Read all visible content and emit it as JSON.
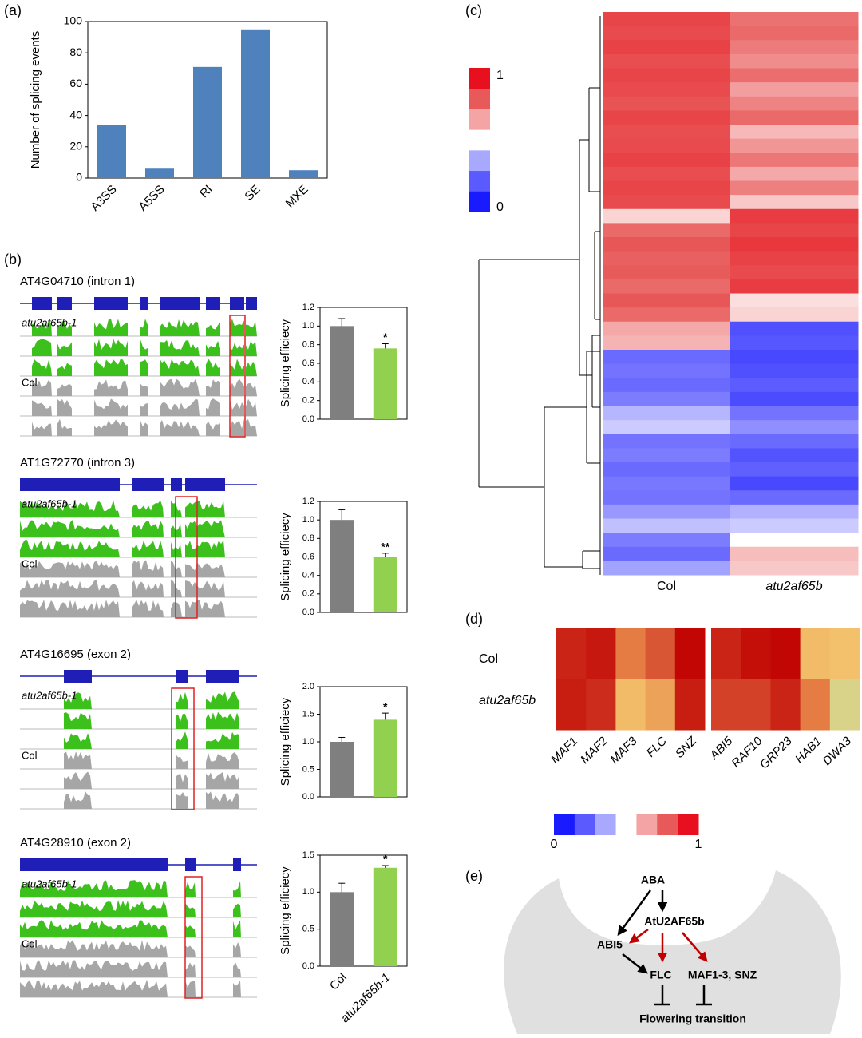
{
  "panel_labels": [
    "(a)",
    "(b)",
    "(c)",
    "(d)",
    "(e)"
  ],
  "tracks": [
    {
      "gene": "AT4G04710 (intron 1)",
      "samples": [
        "atu2af65b-1",
        "Col"
      ]
    },
    {
      "gene": "AT1G72770 (intron 3)",
      "samples": [
        "atu2af65b-1",
        "Col"
      ]
    },
    {
      "gene": "AT4G16695 (exon 2)",
      "samples": [
        "atu2af65b-1",
        "Col"
      ]
    },
    {
      "gene": "AT4G28910 (exon 2)",
      "samples": [
        "atu2af65b-1",
        "Col"
      ]
    }
  ],
  "chart_data": [
    {
      "type": "bar",
      "y_label": "Number of splicing events",
      "categories": [
        "A3SS",
        "A5SS",
        "RI",
        "SE",
        "MXE"
      ],
      "values": [
        34,
        6,
        71,
        95,
        5
      ],
      "color": "#4f81bd",
      "ylim": [
        0,
        100
      ],
      "yticks": [
        0,
        20,
        40,
        60,
        80,
        100
      ]
    },
    {
      "type": "bar",
      "y_label": "Splicing efficiecy",
      "categories": [
        null,
        null
      ],
      "values": [
        1.0,
        0.76
      ],
      "errors": [
        0.08,
        0.05
      ],
      "significance": [
        null,
        "*"
      ],
      "colors": [
        "#7f7f7f",
        "#92d050"
      ],
      "ylim": [
        0,
        1.2
      ],
      "yticks": [
        {
          "value": 0,
          "label": "0.0"
        },
        0.2,
        0.4,
        0.6,
        0.8,
        {
          "value": 1,
          "label": "1.0"
        },
        1.2
      ]
    },
    {
      "type": "bar",
      "y_label": "Splicing efficiecy",
      "categories": [
        null,
        null
      ],
      "values": [
        1.0,
        0.6
      ],
      "errors": [
        0.11,
        0.04
      ],
      "significance": [
        null,
        "**"
      ],
      "colors": [
        "#7f7f7f",
        "#92d050"
      ],
      "ylim": [
        0,
        1.2
      ],
      "yticks": [
        {
          "value": 0,
          "label": "0.0"
        },
        0.2,
        0.4,
        0.6,
        0.8,
        {
          "value": 1,
          "label": "1.0"
        },
        1.2
      ]
    },
    {
      "type": "bar",
      "y_label": "Splicing efficiecy",
      "categories": [
        null,
        null
      ],
      "values": [
        1.0,
        1.4
      ],
      "errors": [
        0.08,
        0.12
      ],
      "significance": [
        null,
        "*"
      ],
      "colors": [
        "#7f7f7f",
        "#92d050"
      ],
      "ylim": [
        0,
        2
      ],
      "yticks": [
        {
          "value": 0,
          "label": "0.0"
        },
        0.5,
        {
          "value": 1,
          "label": "1.0"
        },
        1.5,
        {
          "value": 2,
          "label": "2.0"
        }
      ]
    },
    {
      "type": "bar",
      "y_label": "Splicing efficiecy",
      "categories": [
        "Col",
        "atu2af65b-1"
      ],
      "values": [
        1.0,
        1.33
      ],
      "errors": [
        0.12,
        0.03
      ],
      "significance": [
        null,
        "*"
      ],
      "colors": [
        "#7f7f7f",
        "#92d050"
      ],
      "ylim": [
        0,
        1.5
      ],
      "yticks": [
        {
          "value": 0,
          "label": "0.0"
        },
        0.5,
        {
          "value": 1,
          "label": "1.0"
        },
        1.5
      ]
    },
    {
      "type": "heatmap",
      "categories": [
        "Col",
        "atu2af65b"
      ],
      "zlim": [
        0,
        1
      ],
      "zticks": [
        1,
        0
      ],
      "colors": [
        "#1a1aff",
        "#5a5aff",
        "#a8a8ff",
        "#ffffff",
        "#f4a4a4",
        "#e85a5a",
        "#e8101e"
      ],
      "values": [
        [
          0.88,
          0.78
        ],
        [
          0.87,
          0.8
        ],
        [
          0.89,
          0.76
        ],
        [
          0.86,
          0.72
        ],
        [
          0.88,
          0.79
        ],
        [
          0.87,
          0.68
        ],
        [
          0.85,
          0.74
        ],
        [
          0.88,
          0.8
        ],
        [
          0.86,
          0.63
        ],
        [
          0.87,
          0.7
        ],
        [
          0.89,
          0.77
        ],
        [
          0.86,
          0.66
        ],
        [
          0.88,
          0.75
        ],
        [
          0.87,
          0.6
        ],
        [
          0.58,
          0.9
        ],
        [
          0.8,
          0.88
        ],
        [
          0.84,
          0.91
        ],
        [
          0.82,
          0.89
        ],
        [
          0.83,
          0.87
        ],
        [
          0.8,
          0.9
        ],
        [
          0.84,
          0.56
        ],
        [
          0.8,
          0.58
        ],
        [
          0.66,
          0.14
        ],
        [
          0.64,
          0.16
        ],
        [
          0.2,
          0.12
        ],
        [
          0.22,
          0.14
        ],
        [
          0.2,
          0.17
        ],
        [
          0.24,
          0.13
        ],
        [
          0.36,
          0.22
        ],
        [
          0.4,
          0.28
        ],
        [
          0.22,
          0.2
        ],
        [
          0.24,
          0.15
        ],
        [
          0.2,
          0.18
        ],
        [
          0.23,
          0.12
        ],
        [
          0.22,
          0.2
        ],
        [
          0.3,
          0.35
        ],
        [
          0.38,
          0.4
        ],
        [
          0.24,
          0.5
        ],
        [
          0.2,
          0.62
        ],
        [
          0.32,
          0.6
        ]
      ]
    },
    {
      "type": "heatmap",
      "categories": [
        "MAF1",
        "MAF2",
        "MAF3",
        "FLC",
        "SNZ",
        "ABI5",
        "RAF10",
        "GRP23",
        "HAB1",
        "DWA3"
      ],
      "rows": [
        "Col",
        "atu2af65b"
      ],
      "zlim": [
        0,
        1
      ],
      "zticks": [
        0,
        1
      ],
      "colors": [
        "#1a1aff",
        "#5a5aff",
        "#a8a8ff",
        "#ffffff",
        "#f4a4a4",
        "#e85a5a",
        "#e8101e"
      ],
      "cell_colors": [
        "#d2d690",
        "#f5c870",
        "#e8884a",
        "#d44a2e",
        "#c00000"
      ],
      "values": [
        [
          0.88,
          0.92,
          0.55,
          0.7,
          0.98,
          0.88,
          0.95,
          0.98,
          0.3,
          0.28
        ],
        [
          0.9,
          0.85,
          0.3,
          0.4,
          0.9,
          0.78,
          0.78,
          0.88,
          0.55,
          0.05
        ]
      ]
    }
  ],
  "diagram": {
    "nodes": [
      "ABA",
      "AtU2AF65b",
      "ABI5",
      "FLC",
      "MAF1-3, SNZ",
      "Flowering transition"
    ]
  }
}
